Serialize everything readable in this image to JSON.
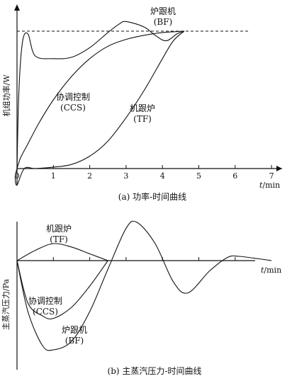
{
  "chart_data": [
    {
      "type": "line",
      "title": "(a) 功率-时间曲线",
      "xlabel": "t",
      "xunit": "/min",
      "ylabel": "机组功率/W",
      "xlim": [
        0,
        7.5
      ],
      "ylim": [
        -0.12,
        1.05
      ],
      "x_ticks": [
        "0",
        "1",
        "2",
        "3",
        "4",
        "5",
        "6",
        "7"
      ],
      "reference_line": {
        "y": 1.0,
        "style": "dashed"
      },
      "series": [
        {
          "name": "炉跟机 (BF)",
          "label_lines": [
            "炉跟机",
            "(BF)"
          ],
          "x": [
            0,
            0.05,
            0.15,
            0.3,
            0.5,
            1.0,
            1.5,
            2.0,
            2.5,
            2.8,
            3.0,
            3.5,
            3.8,
            4.1,
            4.4,
            4.6
          ],
          "y": [
            0,
            0.55,
            0.92,
            0.98,
            0.82,
            0.8,
            0.81,
            0.88,
            0.99,
            1.05,
            1.07,
            1.03,
            0.97,
            0.93,
            0.98,
            1.0
          ]
        },
        {
          "name": "协调控制 (CCS)",
          "label_lines": [
            "协调控制",
            "(CCS)"
          ],
          "x": [
            0,
            0.1,
            0.3,
            0.6,
            1.0,
            1.5,
            2.0,
            2.5,
            3.0,
            3.5,
            4.0,
            4.6
          ],
          "y": [
            0,
            0.08,
            0.18,
            0.33,
            0.5,
            0.67,
            0.8,
            0.89,
            0.94,
            0.97,
            0.99,
            1.0
          ]
        },
        {
          "name": "机跟炉 (TF)",
          "label_lines": [
            "机跟炉",
            "(TF)"
          ],
          "x": [
            0,
            -0.05,
            0.0,
            0.2,
            0.5,
            1.0,
            1.5,
            2.0,
            2.5,
            3.0,
            3.5,
            4.0,
            4.3,
            4.6
          ],
          "y": [
            0,
            -0.06,
            -0.12,
            0.0,
            0.0,
            0.01,
            0.03,
            0.09,
            0.2,
            0.37,
            0.57,
            0.8,
            0.93,
            1.0
          ]
        }
      ]
    },
    {
      "type": "line",
      "title": "(b) 主蒸汽压力-时间曲线",
      "xlabel": "t",
      "xunit": "/min",
      "ylabel": "主蒸汽压力/Pa",
      "xlim": [
        0,
        7.5
      ],
      "ylim": [
        -1.2,
        0.5
      ],
      "series": [
        {
          "name": "机跟炉 (TF)",
          "label_lines": [
            "机跟炉",
            "(TF)"
          ],
          "x": [
            0,
            0.5,
            1.0,
            1.5,
            2.0,
            2.5
          ],
          "y": [
            0,
            0.12,
            0.2,
            0.16,
            0.08,
            0
          ]
        },
        {
          "name": "协调控制 (CCS)",
          "label_lines": [
            "协调控制",
            "(CCS)"
          ],
          "x": [
            0,
            0.3,
            0.7,
            1.0,
            1.5,
            2.0,
            2.5
          ],
          "y": [
            0,
            -0.5,
            -0.65,
            -0.68,
            -0.55,
            -0.3,
            0
          ]
        },
        {
          "name": "炉跟机 (BF)",
          "label_lines": [
            "炉跟机",
            "(BF)"
          ],
          "x": [
            0,
            0.3,
            0.7,
            1.0,
            1.5,
            2.0,
            2.5,
            3.0,
            3.3,
            3.8,
            4.3,
            4.7,
            5.3,
            5.8,
            6.1,
            6.5,
            7.0
          ],
          "y": [
            0,
            -0.6,
            -1.0,
            -1.05,
            -0.95,
            -0.6,
            -0.1,
            0.38,
            0.45,
            0.2,
            -0.25,
            -0.38,
            -0.12,
            0.04,
            0.05,
            0.03,
            0
          ]
        }
      ]
    }
  ]
}
